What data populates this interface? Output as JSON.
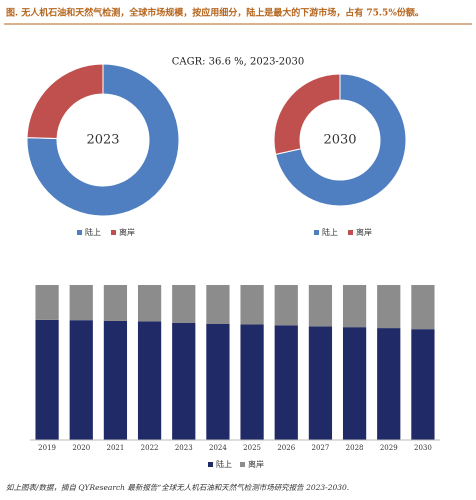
{
  "header": {
    "title": "图.    无人机石油和天然气检测，全球市场规模，按应用细分，陆上是最大的下游市场，占有 75.5%份额。",
    "subtitle": "CAGR: 36.6 %, 2023-2030"
  },
  "chart_data": [
    {
      "type": "pie",
      "title": "2023",
      "categories": [
        "陆上",
        "离岸"
      ],
      "values": [
        75.5,
        24.5
      ],
      "colors": [
        "#4f7fc0",
        "#c0504d"
      ]
    },
    {
      "type": "pie",
      "title": "2030",
      "categories": [
        "陆上",
        "离岸"
      ],
      "values": [
        71.5,
        28.5
      ],
      "colors": [
        "#4f7fc0",
        "#c0504d"
      ]
    },
    {
      "type": "bar",
      "stacked": true,
      "categories": [
        "2019",
        "2020",
        "2021",
        "2022",
        "2023",
        "2024",
        "2025",
        "2026",
        "2027",
        "2028",
        "2029",
        "2030"
      ],
      "ylim": [
        0,
        100
      ],
      "series": [
        {
          "name": "陆上",
          "color": "#1f2a66",
          "values": [
            77.5,
            77.3,
            76.8,
            76.5,
            75.5,
            75.0,
            74.5,
            74.0,
            73.3,
            72.8,
            72.2,
            71.5
          ]
        },
        {
          "name": "离岸",
          "color": "#8c8c8c",
          "values": [
            22.5,
            22.7,
            23.2,
            23.5,
            24.5,
            25.0,
            25.5,
            26.0,
            26.7,
            27.2,
            27.8,
            28.5
          ]
        }
      ]
    }
  ],
  "source": "如上图表/数据，摘自 QYResearch 最新报告“全球无人机石油和天然气检测市场研究报告 2023-2030."
}
